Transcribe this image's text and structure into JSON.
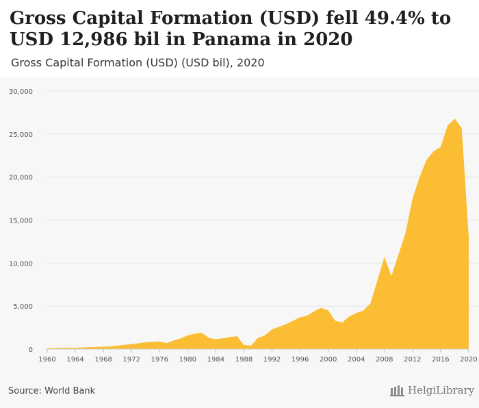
{
  "header": {
    "title": "Gross Capital Formation (USD) fell 49.4% to USD 12,986 bil in Panama in 2020",
    "subtitle": "Gross Capital Formation (USD) (USD bil), 2020"
  },
  "footer": {
    "source": "Source: World Bank",
    "logo_text": "HelgiLibrary"
  },
  "colors": {
    "area": "#fbbd33",
    "grid": "#e3e3e3"
  },
  "chart_data": {
    "type": "area",
    "title": "Gross Capital Formation (USD) fell 49.4% to USD 12,986 bil in Panama in 2020",
    "subtitle": "Gross Capital Formation (USD) (USD bil), 2020",
    "xlabel": "",
    "ylabel": "",
    "grid": true,
    "legend": "none",
    "ylim": [
      0,
      30000
    ],
    "y_ticks": [
      0,
      5000,
      10000,
      15000,
      20000,
      25000,
      30000
    ],
    "y_tick_labels": [
      "0",
      "5,000",
      "10,000",
      "15,000",
      "20,000",
      "25,000",
      "30,000"
    ],
    "x_ticks": [
      1960,
      1964,
      1968,
      1972,
      1976,
      1980,
      1984,
      1988,
      1992,
      1996,
      2000,
      2004,
      2008,
      2012,
      2016,
      2020
    ],
    "series": [
      {
        "x": [
          1960,
          1961,
          1962,
          1963,
          1964,
          1965,
          1966,
          1967,
          1968,
          1969,
          1970,
          1971,
          1972,
          1973,
          1974,
          1975,
          1976,
          1977,
          1978,
          1979,
          1980,
          1981,
          1982,
          1983,
          1984,
          1985,
          1986,
          1987,
          1988,
          1989,
          1990,
          1991,
          1992,
          1993,
          1994,
          1995,
          1996,
          1997,
          1998,
          1999,
          2000,
          2001,
          2002,
          2003,
          2004,
          2005,
          2006,
          2007,
          2008,
          2009,
          2010,
          2011,
          2012,
          2013,
          2014,
          2015,
          2016,
          2017,
          2018,
          2019,
          2020
        ],
        "values": [
          100,
          130,
          150,
          170,
          160,
          190,
          230,
          260,
          280,
          320,
          400,
          500,
          580,
          680,
          800,
          850,
          900,
          700,
          1000,
          1250,
          1600,
          1800,
          1900,
          1300,
          1150,
          1250,
          1400,
          1500,
          500,
          400,
          1300,
          1600,
          2300,
          2600,
          2900,
          3300,
          3700,
          3900,
          4400,
          4800,
          4500,
          3300,
          3100,
          3800,
          4200,
          4500,
          5300,
          8000,
          10700,
          8500,
          11000,
          13500,
          17500,
          20000,
          22000,
          23000,
          23500,
          26000,
          26800,
          25700,
          12986
        ]
      }
    ]
  }
}
